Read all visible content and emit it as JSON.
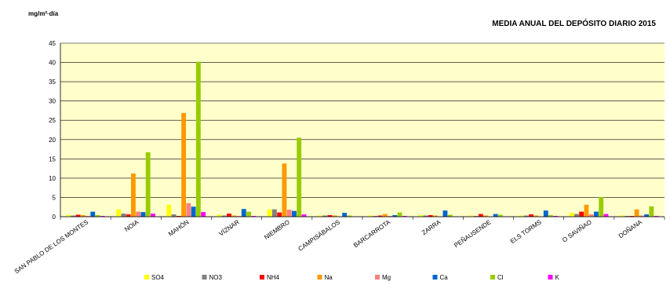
{
  "chart_data": {
    "type": "bar",
    "title": "MEDIA ANUAL DEL DEPÓSITO DIARIO 2015",
    "ylabel": "mg/m²·día",
    "xlabel": "",
    "ylim": [
      0,
      45
    ],
    "yticks": [
      0,
      5,
      10,
      15,
      20,
      25,
      30,
      35,
      40,
      45
    ],
    "grid": true,
    "legend_position": "bottom",
    "plot_background": "#FFFFCC",
    "categories": [
      "SAN PABLO DE LOS MONTES",
      "NOIA",
      "MAHÓN",
      "VÍZNAR",
      "NIEMBRO",
      "CAMPISÁBALOS",
      "BARCARROTA",
      "ZARRA",
      "PEÑAUSENDE",
      "ELS TORMS",
      "O SAVIÑAO",
      "DOÑANA"
    ],
    "series": [
      {
        "name": "SO4",
        "color": "#FFFF00",
        "values": [
          0.4,
          1.9,
          3.1,
          0.5,
          1.9,
          0.3,
          0.3,
          0.4,
          0.3,
          0.3,
          1.0,
          0.3
        ]
      },
      {
        "name": "NO3",
        "color": "#808080",
        "values": [
          0.3,
          0.8,
          0.6,
          0.3,
          1.9,
          0.3,
          0.2,
          0.3,
          0.2,
          0.3,
          0.7,
          0.2
        ]
      },
      {
        "name": "NH4",
        "color": "#FF0000",
        "values": [
          0.5,
          0.6,
          0.2,
          0.8,
          1.1,
          0.4,
          0.3,
          0.4,
          0.7,
          0.6,
          1.3,
          0.2
        ]
      },
      {
        "name": "Na",
        "color": "#FF9900",
        "values": [
          0.4,
          11.2,
          26.9,
          0.3,
          13.8,
          0.3,
          0.7,
          0.3,
          0.3,
          0.3,
          3.1,
          1.9
        ]
      },
      {
        "name": "Mg",
        "color": "#FF8080",
        "values": [
          0.2,
          1.3,
          3.5,
          0.2,
          1.8,
          0.1,
          0.2,
          0.1,
          0.1,
          0.1,
          0.6,
          0.3
        ]
      },
      {
        "name": "Ca",
        "color": "#0066CC",
        "values": [
          1.3,
          1.2,
          2.6,
          2.0,
          1.5,
          1.0,
          0.4,
          1.6,
          0.7,
          1.6,
          1.3,
          0.6
        ]
      },
      {
        "name": "Cl",
        "color": "#99CC00",
        "values": [
          0.4,
          16.7,
          40.2,
          1.3,
          20.5,
          0.3,
          1.1,
          0.5,
          0.5,
          0.4,
          5.1,
          2.7
        ]
      },
      {
        "name": "K",
        "color": "#FF00FF",
        "values": [
          0.2,
          0.8,
          1.2,
          0.2,
          0.6,
          0.1,
          0.2,
          0.1,
          0.1,
          0.2,
          0.7,
          0.2
        ]
      }
    ]
  }
}
